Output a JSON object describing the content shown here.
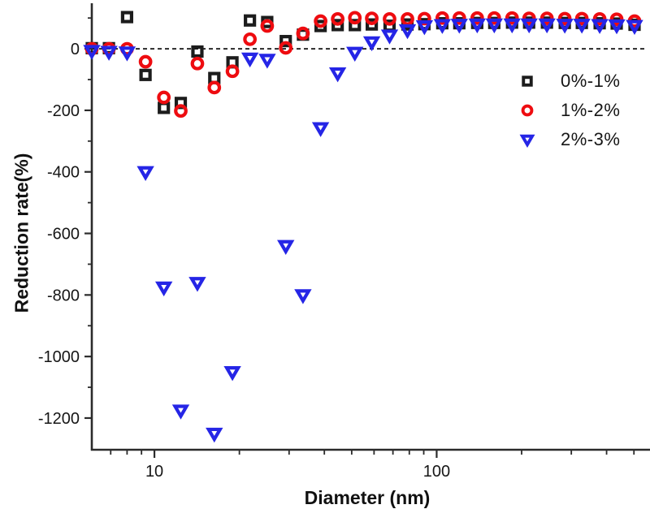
{
  "figure": {
    "background": "#ffffff",
    "axis_color": "#2b2b2b",
    "tick_label_color": "#161616"
  },
  "chart_data": {
    "type": "scatter",
    "title": "",
    "xlabel": "Diameter (nm)",
    "ylabel": "Reduction rate(%)",
    "x_scale": "log",
    "xlim": [
      6.0,
      570
    ],
    "ylim": [
      -1303,
      148
    ],
    "grid": false,
    "zero_line": {
      "y": 0,
      "style": "dashed",
      "color": "#141414"
    },
    "x_major_ticks": [
      10,
      100
    ],
    "x_minor_ticks": [
      7,
      8,
      9,
      20,
      30,
      40,
      50,
      60,
      70,
      80,
      90,
      200,
      300,
      400,
      500
    ],
    "y_major_ticks": [
      0,
      -200,
      -400,
      -600,
      -800,
      -1000,
      -1200
    ],
    "y_minor_ticks": [
      100,
      -100,
      -300,
      -500,
      -700,
      -900,
      -1100
    ],
    "legend_position": "upper-right-inside",
    "x": [
      6.0,
      6.9,
      8.0,
      9.3,
      10.8,
      12.4,
      14.2,
      16.3,
      18.9,
      21.8,
      25.1,
      29.2,
      33.6,
      38.8,
      44.6,
      51.3,
      58.9,
      68.1,
      78.8,
      90.5,
      104.7,
      120.3,
      139.2,
      160.0,
      185.0,
      212.6,
      245.9,
      284.4,
      326.9,
      378.1,
      434.4,
      502.5
    ],
    "series": [
      {
        "name": "0%-1%",
        "marker": "square",
        "color": "#1c1c1c",
        "values": [
          2,
          2,
          103,
          -85,
          -192,
          -176,
          -9,
          -95,
          -44,
          92,
          87,
          25,
          46,
          74,
          77,
          77,
          79,
          75,
          79,
          80,
          83,
          83,
          84,
          84,
          85,
          85,
          85,
          84,
          84,
          83,
          82,
          78
        ]
      },
      {
        "name": "1%-2%",
        "marker": "circle",
        "color": "#ee0c10",
        "values": [
          0,
          0,
          0,
          -42,
          -158,
          -202,
          -48,
          -126,
          -73,
          31,
          74,
          3,
          50,
          90,
          97,
          101,
          99,
          97,
          97,
          98,
          100,
          100,
          100,
          100,
          100,
          99,
          99,
          98,
          98,
          97,
          96,
          90
        ]
      },
      {
        "name": "2%-3%",
        "marker": "triangle-down",
        "color": "#2525e6",
        "values": [
          -6,
          -9,
          -11,
          -400,
          -775,
          -1175,
          -760,
          -1250,
          -1050,
          -31,
          -35,
          -640,
          -800,
          -257,
          -79,
          -12,
          22,
          44,
          61,
          74,
          78,
          79,
          80,
          80,
          80,
          80,
          80,
          79,
          79,
          78,
          77,
          75
        ]
      }
    ]
  }
}
